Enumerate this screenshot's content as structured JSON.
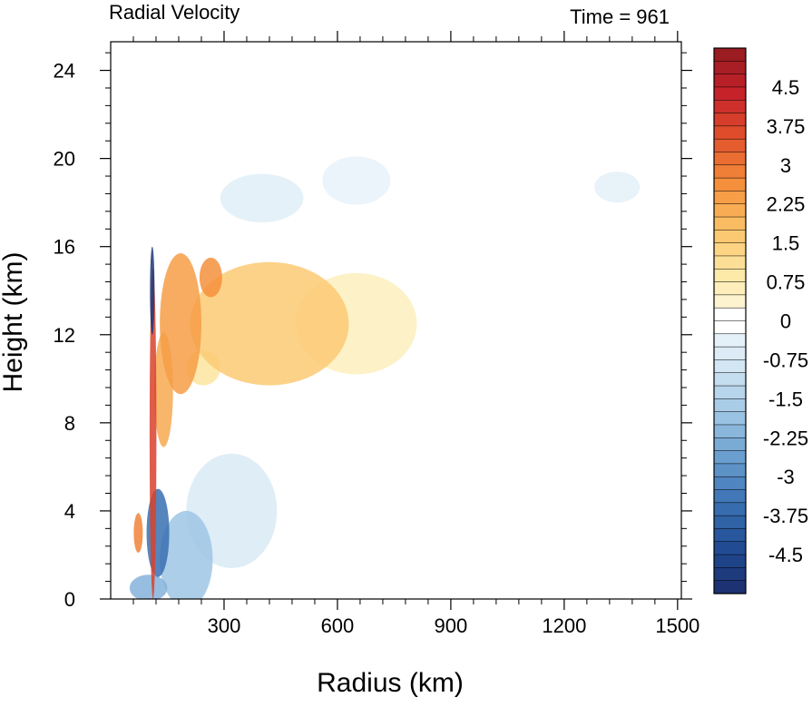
{
  "chart_data": {
    "type": "heatmap",
    "title_left": "Radial Velocity",
    "title_right": "Time = 961",
    "xlabel": "Radius (km)",
    "ylabel": "Height (km)",
    "xlim": [
      0,
      1510
    ],
    "ylim": [
      0,
      25.3
    ],
    "x_ticks": [
      300,
      600,
      900,
      1200,
      1500
    ],
    "x_tick_labels": [
      "300",
      "600",
      "900",
      "1200",
      "1500"
    ],
    "y_ticks": [
      0,
      4,
      8,
      12,
      16,
      20,
      24
    ],
    "y_tick_labels": [
      "0",
      "4",
      "8",
      "12",
      "16",
      "20",
      "24"
    ],
    "colorbar": {
      "min": -5.25,
      "max": 5.25,
      "step": 0.25,
      "tick_values": [
        4.5,
        3.75,
        3,
        2.25,
        1.5,
        0.75,
        0,
        -0.75,
        -1.5,
        -2.25,
        -3,
        -3.75,
        -4.5
      ],
      "tick_labels": [
        "4.5",
        "3.75",
        "3",
        "2.25",
        "1.5",
        "0.75",
        "0",
        "-0.75",
        "-1.5",
        "-2.25",
        "-3",
        "-3.75",
        "-4.5"
      ]
    },
    "features": [
      {
        "r": 420,
        "z": 12.5,
        "dr": 210,
        "dz": 2.8,
        "v": 1.6
      },
      {
        "r": 650,
        "z": 12.5,
        "dr": 160,
        "dz": 2.3,
        "v": 0.6
      },
      {
        "r": 185,
        "z": 12.5,
        "dr": 55,
        "dz": 3.2,
        "v": 2.4
      },
      {
        "r": 265,
        "z": 14.6,
        "dr": 30,
        "dz": 0.9,
        "v": 2.6
      },
      {
        "r": 140,
        "z": 9.5,
        "dr": 25,
        "dz": 2.6,
        "v": 2.2
      },
      {
        "r": 245,
        "z": 10.5,
        "dr": 45,
        "dz": 0.8,
        "v": 1.0
      },
      {
        "r": 112,
        "z": 7.5,
        "dr": 9,
        "dz": 7.5,
        "v": 3.8
      },
      {
        "r": 73,
        "z": 3.0,
        "dr": 12,
        "dz": 0.9,
        "v": 2.8
      },
      {
        "r": 125,
        "z": 3.0,
        "dr": 30,
        "dz": 2.0,
        "v": -3.6
      },
      {
        "r": 200,
        "z": 1.8,
        "dr": 70,
        "dz": 2.2,
        "v": -1.8
      },
      {
        "r": 320,
        "z": 4.0,
        "dr": 120,
        "dz": 2.6,
        "v": -0.7
      },
      {
        "r": 100,
        "z": 0.5,
        "dr": 50,
        "dz": 0.6,
        "v": -2.2
      },
      {
        "r": 400,
        "z": 18.2,
        "dr": 110,
        "dz": 1.1,
        "v": -0.5
      },
      {
        "r": 650,
        "z": 19.0,
        "dr": 90,
        "dz": 1.1,
        "v": -0.3
      },
      {
        "r": 1340,
        "z": 18.7,
        "dr": 60,
        "dz": 0.7,
        "v": -0.4
      },
      {
        "r": 110,
        "z": 14.0,
        "dr": 6,
        "dz": 2.0,
        "v": -5.0
      }
    ],
    "grid": false,
    "legend": "colorbar-right",
    "colors": {
      "negative": [
        "#1b2e6d",
        "#214c94",
        "#3b72b4",
        "#6a9fcf",
        "#a2c8e5",
        "#d2e6f3",
        "#f4f9fc"
      ],
      "positive": [
        "#fdfbea",
        "#fde9a8",
        "#fbc468",
        "#f48f3b",
        "#e2532c",
        "#c5222a",
        "#941b20"
      ]
    }
  }
}
